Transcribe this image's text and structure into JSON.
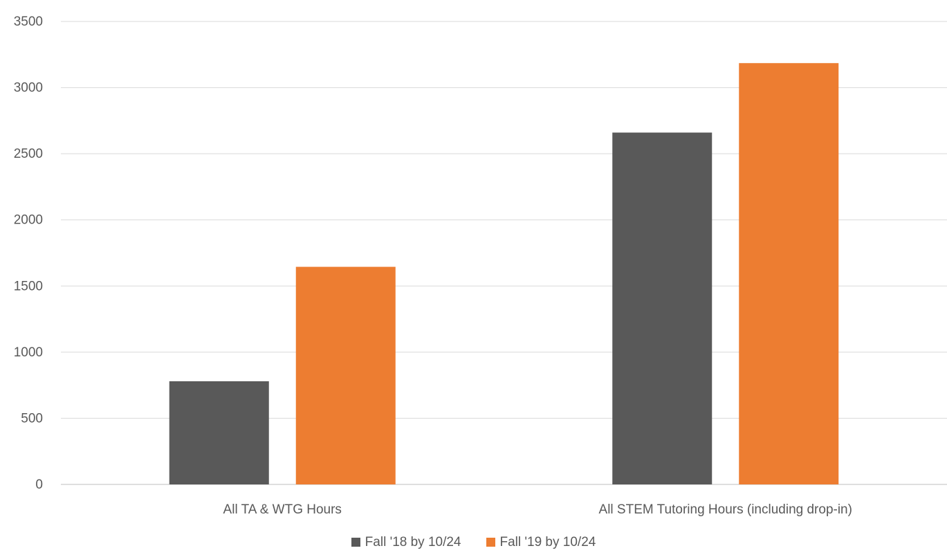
{
  "chart_data": {
    "type": "bar",
    "categories": [
      "All TA & WTG Hours",
      "All STEM Tutoring Hours (including drop-in)"
    ],
    "series": [
      {
        "name": "Fall '18 by 10/24",
        "color": "#595959",
        "values": [
          780,
          2660
        ]
      },
      {
        "name": "Fall '19 by 10/24",
        "color": "#ED7D31",
        "values": [
          1645,
          3185
        ]
      }
    ],
    "yticks": [
      "0",
      "500",
      "1000",
      "1500",
      "2000",
      "2500",
      "3000",
      "3500"
    ],
    "ylim": [
      0,
      3500
    ],
    "grid": true,
    "legend_position": "bottom"
  }
}
